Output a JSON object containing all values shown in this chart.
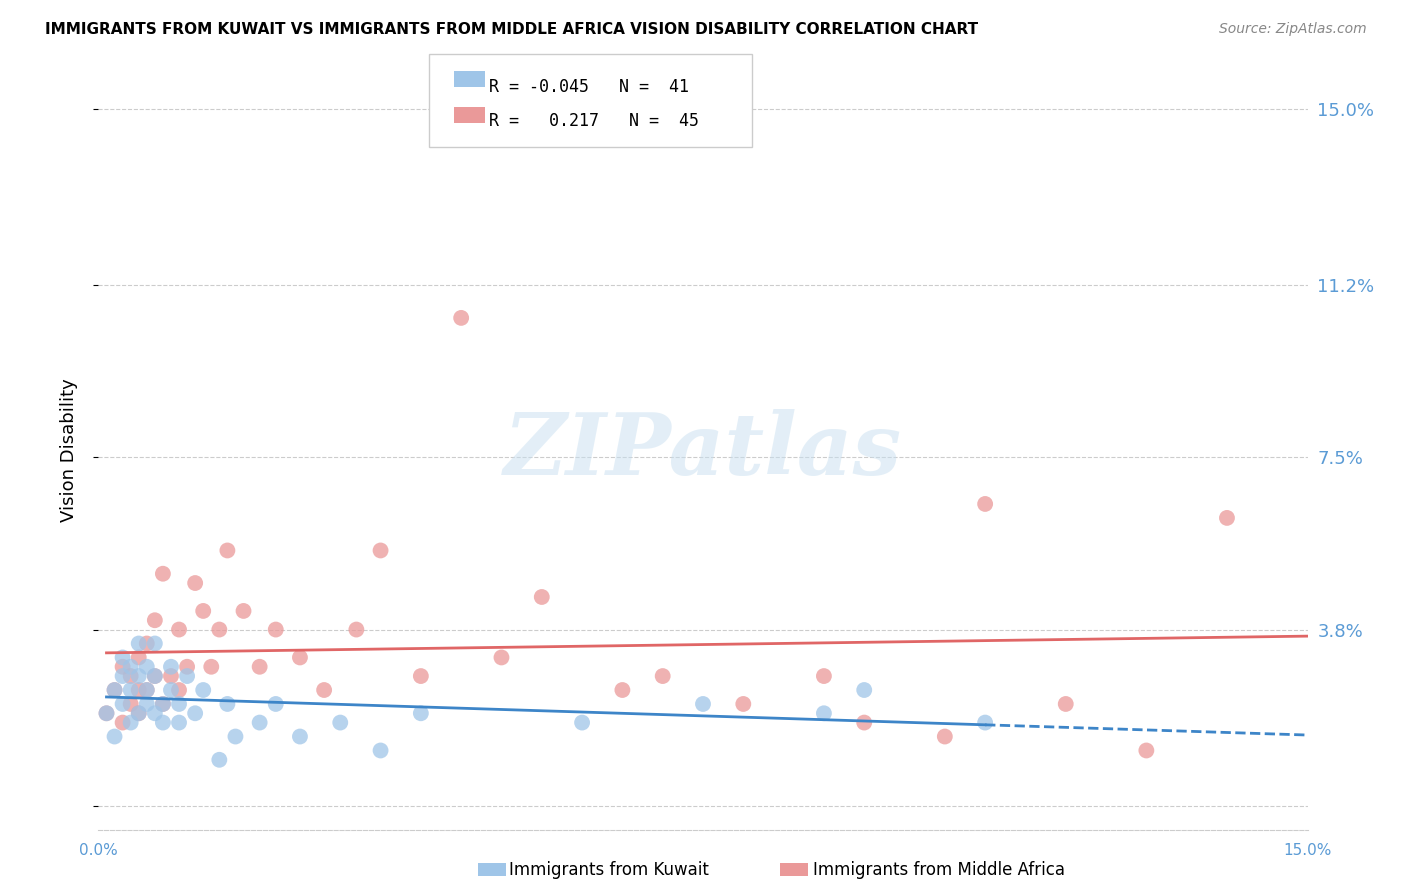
{
  "title": "IMMIGRANTS FROM KUWAIT VS IMMIGRANTS FROM MIDDLE AFRICA VISION DISABILITY CORRELATION CHART",
  "source": "Source: ZipAtlas.com",
  "ylabel": "Vision Disability",
  "xlim": [
    0.0,
    0.15
  ],
  "ylim": [
    -0.005,
    0.158
  ],
  "yticks": [
    0.0,
    0.038,
    0.075,
    0.112,
    0.15
  ],
  "ytick_labels": [
    "",
    "3.8%",
    "7.5%",
    "11.2%",
    "15.0%"
  ],
  "color_kuwait": "#9fc5e8",
  "color_middle_africa": "#ea9999",
  "color_trendline_kuwait": "#3d85c8",
  "color_trendline_middle_africa": "#e06666",
  "watermark_text": "ZIPatlas",
  "kuwait_x": [
    0.001,
    0.002,
    0.002,
    0.003,
    0.003,
    0.003,
    0.004,
    0.004,
    0.004,
    0.005,
    0.005,
    0.005,
    0.006,
    0.006,
    0.006,
    0.007,
    0.007,
    0.007,
    0.008,
    0.008,
    0.009,
    0.009,
    0.01,
    0.01,
    0.011,
    0.012,
    0.013,
    0.015,
    0.016,
    0.017,
    0.02,
    0.022,
    0.025,
    0.03,
    0.035,
    0.04,
    0.06,
    0.075,
    0.09,
    0.095,
    0.11
  ],
  "kuwait_y": [
    0.02,
    0.015,
    0.025,
    0.032,
    0.022,
    0.028,
    0.018,
    0.03,
    0.025,
    0.02,
    0.035,
    0.028,
    0.022,
    0.03,
    0.025,
    0.02,
    0.028,
    0.035,
    0.022,
    0.018,
    0.025,
    0.03,
    0.018,
    0.022,
    0.028,
    0.02,
    0.025,
    0.01,
    0.022,
    0.015,
    0.018,
    0.022,
    0.015,
    0.018,
    0.012,
    0.02,
    0.018,
    0.022,
    0.02,
    0.025,
    0.018
  ],
  "middle_africa_x": [
    0.001,
    0.002,
    0.003,
    0.003,
    0.004,
    0.004,
    0.005,
    0.005,
    0.005,
    0.006,
    0.006,
    0.007,
    0.007,
    0.008,
    0.008,
    0.009,
    0.01,
    0.01,
    0.011,
    0.012,
    0.013,
    0.014,
    0.015,
    0.016,
    0.018,
    0.02,
    0.022,
    0.025,
    0.028,
    0.032,
    0.035,
    0.04,
    0.045,
    0.05,
    0.055,
    0.065,
    0.07,
    0.08,
    0.09,
    0.095,
    0.105,
    0.11,
    0.12,
    0.13,
    0.14
  ],
  "middle_africa_y": [
    0.02,
    0.025,
    0.018,
    0.03,
    0.022,
    0.028,
    0.02,
    0.032,
    0.025,
    0.035,
    0.025,
    0.028,
    0.04,
    0.022,
    0.05,
    0.028,
    0.025,
    0.038,
    0.03,
    0.048,
    0.042,
    0.03,
    0.038,
    0.055,
    0.042,
    0.03,
    0.038,
    0.032,
    0.025,
    0.038,
    0.055,
    0.028,
    0.105,
    0.032,
    0.045,
    0.025,
    0.028,
    0.022,
    0.028,
    0.018,
    0.015,
    0.065,
    0.022,
    0.012,
    0.062
  ]
}
